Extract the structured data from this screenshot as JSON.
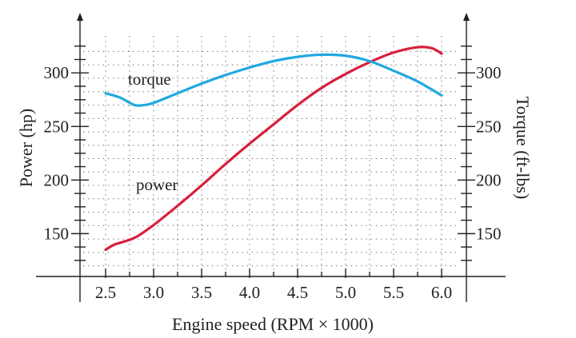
{
  "chart_data": {
    "type": "line",
    "xlabel": "Engine speed (RPM × 1000)",
    "ylabel_left": "Power (hp)",
    "ylabel_right": "Torque (ft-lbs)",
    "xlim": [
      2.5,
      6.0
    ],
    "ylim_left": [
      110,
      330
    ],
    "ylim_right": [
      110,
      330
    ],
    "xticks": [
      2.5,
      3.0,
      3.5,
      4.0,
      4.5,
      5.0,
      5.5,
      6.0
    ],
    "xtick_labels": [
      "2.5",
      "3.0",
      "3.5",
      "4.0",
      "4.5",
      "5.0",
      "5.5",
      "6.0"
    ],
    "yticks_left": [
      150,
      200,
      250,
      300
    ],
    "ytick_labels_left": [
      "150",
      "200",
      "250",
      "300"
    ],
    "yticks_right": [
      150,
      200,
      250,
      300
    ],
    "ytick_labels_right": [
      "150",
      "200",
      "250",
      "300"
    ],
    "grid": true,
    "series": [
      {
        "name": "power",
        "axis": "left",
        "color": "#d71f3c",
        "x": [
          2.5,
          2.6,
          2.8,
          3.0,
          3.25,
          3.5,
          3.75,
          4.0,
          4.25,
          4.5,
          4.75,
          5.0,
          5.25,
          5.5,
          5.75,
          5.9,
          6.0
        ],
        "y": [
          135,
          140,
          146,
          158,
          176,
          195,
          215,
          234,
          252,
          270,
          286,
          299,
          310,
          319,
          324,
          323,
          318
        ]
      },
      {
        "name": "torque",
        "axis": "right",
        "color": "#21a8e0",
        "x": [
          2.5,
          2.65,
          2.8,
          2.9,
          3.0,
          3.25,
          3.5,
          3.75,
          4.0,
          4.25,
          4.5,
          4.75,
          5.0,
          5.25,
          5.5,
          5.75,
          6.0
        ],
        "y": [
          281,
          277,
          270,
          270,
          272,
          281,
          290,
          298,
          305,
          311,
          315,
          317,
          316,
          311,
          302,
          292,
          279
        ]
      }
    ]
  }
}
